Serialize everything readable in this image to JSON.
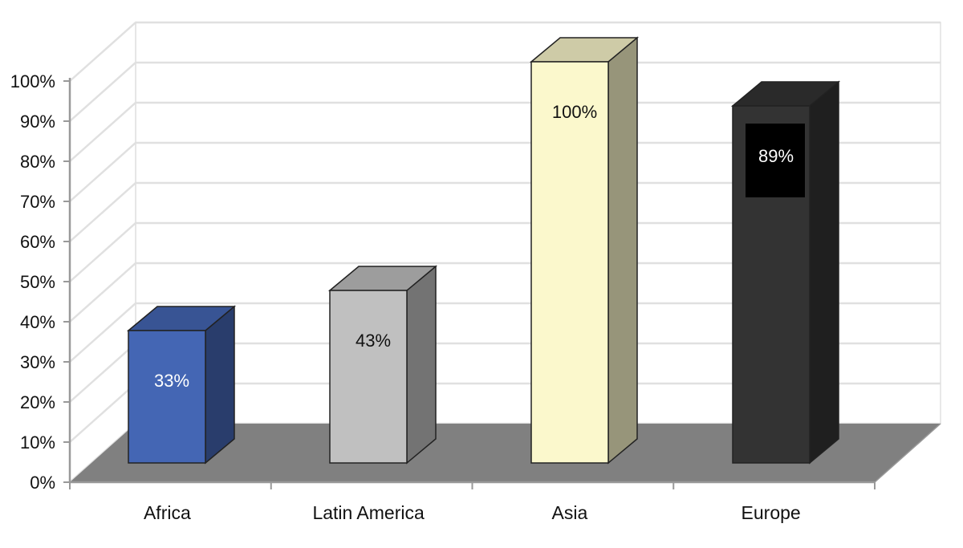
{
  "chart_data": {
    "type": "bar",
    "style": "3d",
    "categories": [
      "Africa",
      "Latin America",
      "Asia",
      "Europe"
    ],
    "values": [
      33,
      43,
      100,
      89
    ],
    "data_labels": [
      "33%",
      "43%",
      "100%",
      "89%"
    ],
    "ylim": [
      0,
      100
    ],
    "yticks": [
      {
        "value": 0,
        "label": "0%"
      },
      {
        "value": 10,
        "label": "10%"
      },
      {
        "value": 20,
        "label": "20%"
      },
      {
        "value": 30,
        "label": "30%"
      },
      {
        "value": 40,
        "label": "40%"
      },
      {
        "value": 50,
        "label": "50%"
      },
      {
        "value": 60,
        "label": "60%"
      },
      {
        "value": 70,
        "label": "70%"
      },
      {
        "value": 80,
        "label": "80%"
      },
      {
        "value": 90,
        "label": "90%"
      },
      {
        "value": 100,
        "label": "100%"
      }
    ],
    "grid": true,
    "legend": "none",
    "colors": {
      "bars": [
        "#4466b4",
        "#c0c0c0",
        "#fbf8cc",
        "#333333"
      ],
      "floor": "#808080",
      "gridline": "#e0e0e0",
      "axis": "#999999"
    }
  }
}
